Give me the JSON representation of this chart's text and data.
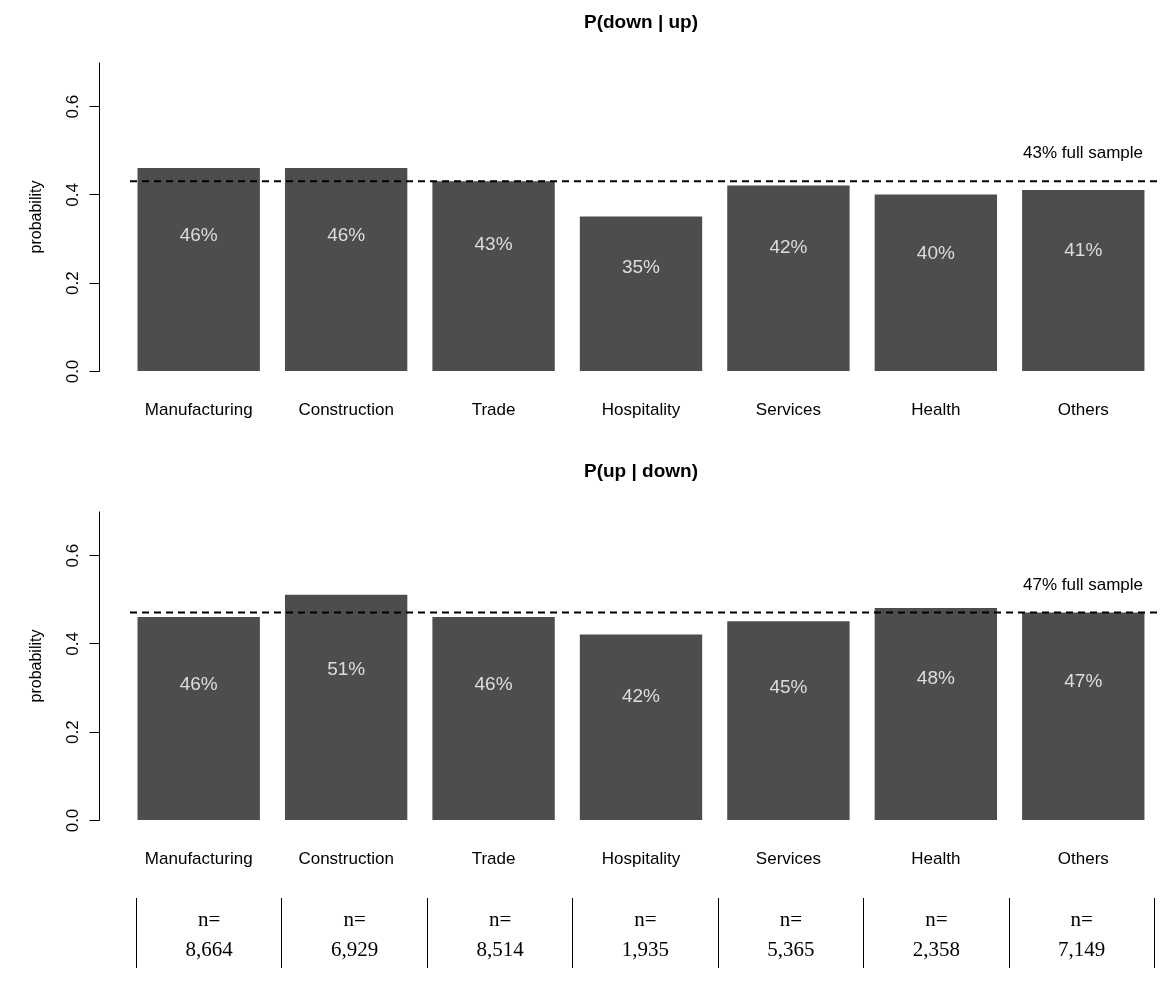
{
  "chart_data": [
    {
      "type": "bar",
      "title": "P(down | up)",
      "ylabel": "probability",
      "categories": [
        "Manufacturing",
        "Construction",
        "Trade",
        "Hospitality",
        "Services",
        "Health",
        "Others"
      ],
      "values": [
        0.46,
        0.46,
        0.43,
        0.35,
        0.42,
        0.4,
        0.41
      ],
      "value_labels": [
        "46%",
        "46%",
        "43%",
        "35%",
        "42%",
        "40%",
        "41%"
      ],
      "color": "#4d4d4d",
      "ylim": [
        0,
        0.7
      ],
      "yticks": [
        {
          "value": 0,
          "label": "0.0"
        },
        0.2,
        0.4,
        0.6
      ],
      "ref_lines": [
        {
          "axis": "y",
          "value": 0.43,
          "label": "43% full sample",
          "line_style": "dashed"
        }
      ],
      "grid": false
    },
    {
      "type": "bar",
      "title": "P(up | down)",
      "ylabel": "probability",
      "categories": [
        "Manufacturing",
        "Construction",
        "Trade",
        "Hospitality",
        "Services",
        "Health",
        "Others"
      ],
      "values": [
        0.46,
        0.51,
        0.46,
        0.42,
        0.45,
        0.48,
        0.47
      ],
      "value_labels": [
        "46%",
        "51%",
        "46%",
        "42%",
        "45%",
        "48%",
        "47%"
      ],
      "color": "#4d4d4d",
      "ylim": [
        0,
        0.7
      ],
      "yticks": [
        {
          "value": 0,
          "label": "0.0"
        },
        0.2,
        0.4,
        0.6
      ],
      "ref_lines": [
        {
          "axis": "y",
          "value": 0.47,
          "label": "47% full sample",
          "line_style": "dashed"
        }
      ],
      "grid": false,
      "annotations": [
        "n=\n8,664",
        "n=\n6,929",
        "n=\n8,514",
        "n=\n1,935",
        "n=\n5,365",
        "n=\n2,358",
        "n=\n7,149"
      ]
    }
  ]
}
